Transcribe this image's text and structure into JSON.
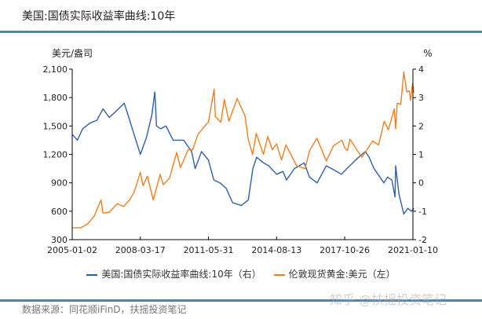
{
  "title": "美国:国债实际收益率曲线:10年",
  "source": "数据来源：同花顺iFinD，扶摇投资笔记",
  "watermark": "知乎 @扶摇投资笔记",
  "chart_data": {
    "type": "line",
    "left_axis": {
      "label": "美元/盎司",
      "ylim": [
        300,
        2100
      ],
      "ticks": [
        "300",
        "600",
        "900",
        "1,200",
        "1,500",
        "1,800",
        "2,100"
      ]
    },
    "right_axis": {
      "label": "%",
      "ylim": [
        -2,
        4
      ],
      "ticks": [
        "-2",
        "-1",
        "0",
        "1",
        "2",
        "3",
        "4"
      ]
    },
    "x_ticks": [
      "2005-01-02",
      "2008-03-17",
      "2011-05-31",
      "2014-08-13",
      "2017-10-26",
      "2021-01-10"
    ],
    "grid": false,
    "legend_position": "bottom",
    "series": [
      {
        "name": "美国:国债实际收益率曲线:10年（右）",
        "axis": "right",
        "color": "#2e5fae",
        "points": [
          [
            "2005-01-03",
            1.7
          ],
          [
            "2005-04-01",
            1.5
          ],
          [
            "2005-07-01",
            1.9
          ],
          [
            "2005-11-01",
            2.1
          ],
          [
            "2006-03-01",
            2.2
          ],
          [
            "2006-06-15",
            2.6
          ],
          [
            "2006-10-01",
            2.3
          ],
          [
            "2007-01-15",
            2.5
          ],
          [
            "2007-06-15",
            2.8
          ],
          [
            "2007-09-01",
            2.3
          ],
          [
            "2007-12-01",
            1.7
          ],
          [
            "2008-03-17",
            1.0
          ],
          [
            "2008-07-01",
            1.6
          ],
          [
            "2008-10-01",
            2.4
          ],
          [
            "2008-11-20",
            3.2
          ],
          [
            "2008-12-20",
            2.0
          ],
          [
            "2009-03-01",
            1.9
          ],
          [
            "2009-06-01",
            2.0
          ],
          [
            "2009-10-01",
            1.5
          ],
          [
            "2010-01-15",
            1.5
          ],
          [
            "2010-04-01",
            1.5
          ],
          [
            "2010-08-15",
            1.1
          ],
          [
            "2010-10-15",
            0.5
          ],
          [
            "2011-02-01",
            1.1
          ],
          [
            "2011-05-31",
            0.8
          ],
          [
            "2011-09-01",
            0.1
          ],
          [
            "2011-12-15",
            0.0
          ],
          [
            "2012-04-01",
            -0.2
          ],
          [
            "2012-07-20",
            -0.7
          ],
          [
            "2012-12-15",
            -0.8
          ],
          [
            "2013-04-15",
            -0.6
          ],
          [
            "2013-07-01",
            0.5
          ],
          [
            "2013-09-05",
            0.9
          ],
          [
            "2014-01-01",
            0.7
          ],
          [
            "2014-04-01",
            0.6
          ],
          [
            "2014-08-13",
            0.3
          ],
          [
            "2014-12-01",
            0.4
          ],
          [
            "2015-01-30",
            0.1
          ],
          [
            "2015-06-15",
            0.5
          ],
          [
            "2015-12-01",
            0.7
          ],
          [
            "2016-03-01",
            0.2
          ],
          [
            "2016-07-08",
            0.0
          ],
          [
            "2016-12-15",
            0.6
          ],
          [
            "2017-03-15",
            0.5
          ],
          [
            "2017-09-01",
            0.3
          ],
          [
            "2017-12-01",
            0.5
          ],
          [
            "2018-05-01",
            0.8
          ],
          [
            "2018-10-15",
            1.1
          ],
          [
            "2018-12-20",
            0.9
          ],
          [
            "2019-03-15",
            0.5
          ],
          [
            "2019-08-30",
            0.0
          ],
          [
            "2019-11-01",
            0.2
          ],
          [
            "2020-01-15",
            0.1
          ],
          [
            "2020-03-09",
            -0.5
          ],
          [
            "2020-03-20",
            0.6
          ],
          [
            "2020-05-15",
            -0.4
          ],
          [
            "2020-08-06",
            -1.1
          ],
          [
            "2020-10-15",
            -0.9
          ],
          [
            "2020-12-15",
            -1.0
          ],
          [
            "2021-01-25",
            -0.9
          ]
        ]
      },
      {
        "name": "伦敦现货黄金:美元（左）",
        "axis": "left",
        "color": "#f07f1e",
        "points": [
          [
            "2005-01-03",
            425
          ],
          [
            "2005-06-01",
            425
          ],
          [
            "2005-10-01",
            470
          ],
          [
            "2006-01-15",
            550
          ],
          [
            "2006-05-12",
            720
          ],
          [
            "2006-06-15",
            580
          ],
          [
            "2006-10-01",
            590
          ],
          [
            "2007-02-15",
            680
          ],
          [
            "2007-06-01",
            650
          ],
          [
            "2007-09-15",
            720
          ],
          [
            "2007-12-01",
            800
          ],
          [
            "2008-03-17",
            1010
          ],
          [
            "2008-05-01",
            870
          ],
          [
            "2008-07-15",
            970
          ],
          [
            "2008-10-24",
            720
          ],
          [
            "2009-02-20",
            990
          ],
          [
            "2009-04-15",
            880
          ],
          [
            "2009-08-01",
            950
          ],
          [
            "2009-12-02",
            1220
          ],
          [
            "2010-02-05",
            1060
          ],
          [
            "2010-06-15",
            1250
          ],
          [
            "2010-09-01",
            1250
          ],
          [
            "2010-12-01",
            1410
          ],
          [
            "2011-04-25",
            1520
          ],
          [
            "2011-05-31",
            1540
          ],
          [
            "2011-09-06",
            1890
          ],
          [
            "2011-09-26",
            1600
          ],
          [
            "2011-12-29",
            1540
          ],
          [
            "2012-02-28",
            1780
          ],
          [
            "2012-05-15",
            1550
          ],
          [
            "2012-10-05",
            1790
          ],
          [
            "2013-02-15",
            1610
          ],
          [
            "2013-04-16",
            1350
          ],
          [
            "2013-06-28",
            1200
          ],
          [
            "2013-08-28",
            1420
          ],
          [
            "2013-12-31",
            1200
          ],
          [
            "2014-03-14",
            1390
          ],
          [
            "2014-06-01",
            1250
          ],
          [
            "2014-08-13",
            1310
          ],
          [
            "2014-11-06",
            1140
          ],
          [
            "2015-01-22",
            1300
          ],
          [
            "2015-07-24",
            1080
          ],
          [
            "2015-12-17",
            1050
          ],
          [
            "2016-03-01",
            1240
          ],
          [
            "2016-07-06",
            1370
          ],
          [
            "2016-12-15",
            1130
          ],
          [
            "2017-04-15",
            1290
          ],
          [
            "2017-09-08",
            1350
          ],
          [
            "2017-10-26",
            1270
          ],
          [
            "2017-12-12",
            1240
          ],
          [
            "2018-01-25",
            1360
          ],
          [
            "2018-08-16",
            1170
          ],
          [
            "2019-02-20",
            1340
          ],
          [
            "2019-06-01",
            1300
          ],
          [
            "2019-09-04",
            1550
          ],
          [
            "2019-11-15",
            1460
          ],
          [
            "2020-02-24",
            1680
          ],
          [
            "2020-03-19",
            1470
          ],
          [
            "2020-04-15",
            1740
          ],
          [
            "2020-06-15",
            1730
          ],
          [
            "2020-08-06",
            2070
          ],
          [
            "2020-09-25",
            1860
          ],
          [
            "2020-11-09",
            1870
          ],
          [
            "2020-11-30",
            1770
          ],
          [
            "2021-01-05",
            1950
          ],
          [
            "2021-01-25",
            1850
          ]
        ]
      }
    ]
  }
}
